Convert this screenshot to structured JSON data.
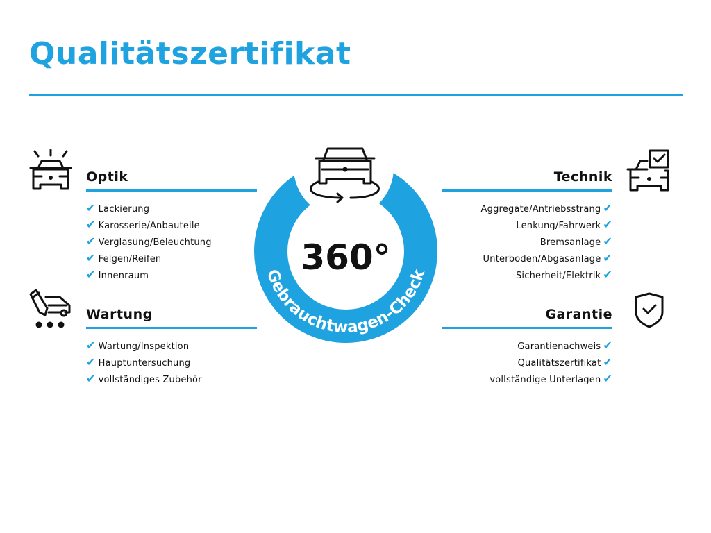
{
  "title": "Qualitätszertifikat",
  "accent_color": "#1ea2e0",
  "center": {
    "big": "360°",
    "ring_text": "Gebrauchtwagen-Check",
    "icon": "car-rotate-icon"
  },
  "sections": {
    "optik": {
      "title": "Optik",
      "icon": "car-lights-icon",
      "items": [
        "Lackierung",
        "Karosserie/Anbauteile",
        "Verglasung/Beleuchtung",
        "Felgen/Reifen",
        "Innenraum"
      ]
    },
    "wartung": {
      "title": "Wartung",
      "icon": "car-service-icon",
      "items": [
        "Wartung/Inspektion",
        "Hauptuntersuchung",
        "vollständiges Zubehör"
      ]
    },
    "technik": {
      "title": "Technik",
      "icon": "car-checkbox-icon",
      "items": [
        "Aggregate/Antriebsstrang",
        "Lenkung/Fahrwerk",
        "Bremsanlage",
        "Unterboden/Abgasanlage",
        "Sicherheit/Elektrik"
      ]
    },
    "garantie": {
      "title": "Garantie",
      "icon": "shield-check-icon",
      "items": [
        "Garantienachweis",
        "Qualitätszertifikat",
        "vollständige Unterlagen"
      ]
    }
  },
  "check_glyph": "✔"
}
